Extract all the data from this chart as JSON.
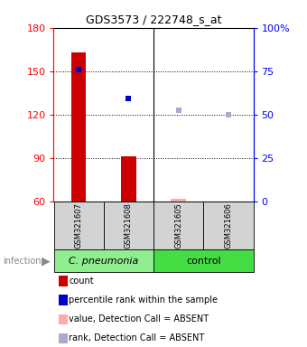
{
  "title": "GDS3573 / 222748_s_at",
  "samples": [
    "GSM321607",
    "GSM321608",
    "GSM321605",
    "GSM321606"
  ],
  "ylim_left": [
    60,
    180
  ],
  "ylim_right": [
    0,
    100
  ],
  "yticks_left": [
    60,
    90,
    120,
    150,
    180
  ],
  "yticks_right": [
    0,
    25,
    50,
    75,
    100
  ],
  "bar_values": [
    163,
    91,
    62,
    60
  ],
  "bar_colors": [
    "#cc0000",
    "#cc0000",
    "#ffaaaa",
    "#ffaaaa"
  ],
  "dot_values": [
    151,
    131,
    123,
    120
  ],
  "dot_colors": [
    "#0000cc",
    "#0000cc",
    "#aaaacc",
    "#aaaacc"
  ],
  "dot_sizes": [
    5,
    5,
    4,
    4
  ],
  "group_label": "infection",
  "group1_label": "C. pneumonia",
  "group2_label": "control",
  "group1_color": "#90ee90",
  "group2_color": "#44dd44",
  "legend_items": [
    {
      "label": "count",
      "color": "#cc0000"
    },
    {
      "label": "percentile rank within the sample",
      "color": "#0000cc"
    },
    {
      "label": "value, Detection Call = ABSENT",
      "color": "#ffaaaa"
    },
    {
      "label": "rank, Detection Call = ABSENT",
      "color": "#aaaacc"
    }
  ],
  "plot_bg_color": "#ffffff",
  "sample_box_color": "#d3d3d3",
  "title_fontsize": 9,
  "axis_fontsize": 8,
  "sample_fontsize": 6,
  "group_fontsize": 8,
  "legend_fontsize": 7,
  "bar_width": 0.3
}
